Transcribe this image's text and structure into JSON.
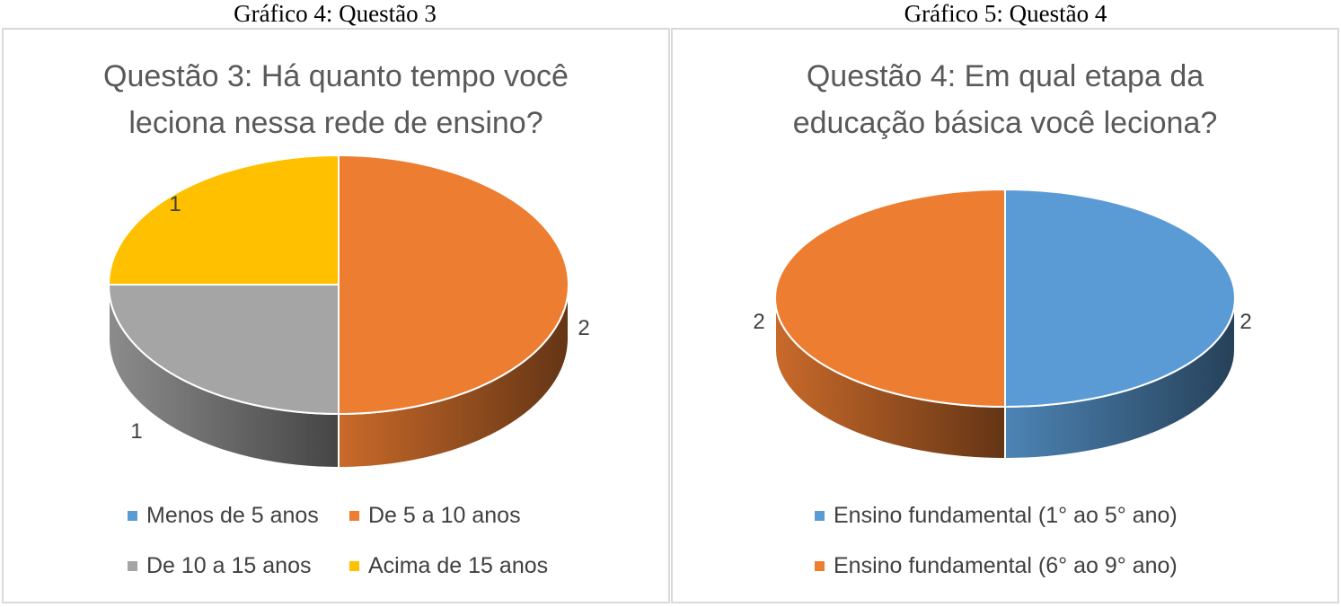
{
  "captions": {
    "left": "Gráfico 4: Questão 3",
    "right": "Gráfico 5: Questão 4"
  },
  "chart_data": [
    {
      "type": "pie",
      "title_lines": [
        "Questão 3: Há quanto tempo você",
        "leciona nessa rede de ensino?"
      ],
      "categories": [
        "Menos de 5 anos",
        "De 5 a 10 anos",
        "De 10 a 15 anos",
        "Acima de 15 anos"
      ],
      "values": [
        0,
        2,
        1,
        1
      ],
      "data_labels": [
        "",
        "2",
        "1",
        "1"
      ],
      "colors": [
        "#5b9bd5",
        "#ed7d31",
        "#a5a5a5",
        "#ffc000"
      ],
      "legend_position": "bottom",
      "style": "3d"
    },
    {
      "type": "pie",
      "title_lines": [
        "Questão 4: Em qual etapa da",
        "educação básica você leciona?"
      ],
      "categories": [
        "Ensino fundamental (1° ao 5° ano)",
        "Ensino fundamental (6° ao 9° ano)"
      ],
      "values": [
        2,
        2
      ],
      "data_labels": [
        "2",
        "2"
      ],
      "colors": [
        "#5b9bd5",
        "#ed7d31"
      ],
      "legend_position": "bottom",
      "style": "3d"
    }
  ]
}
